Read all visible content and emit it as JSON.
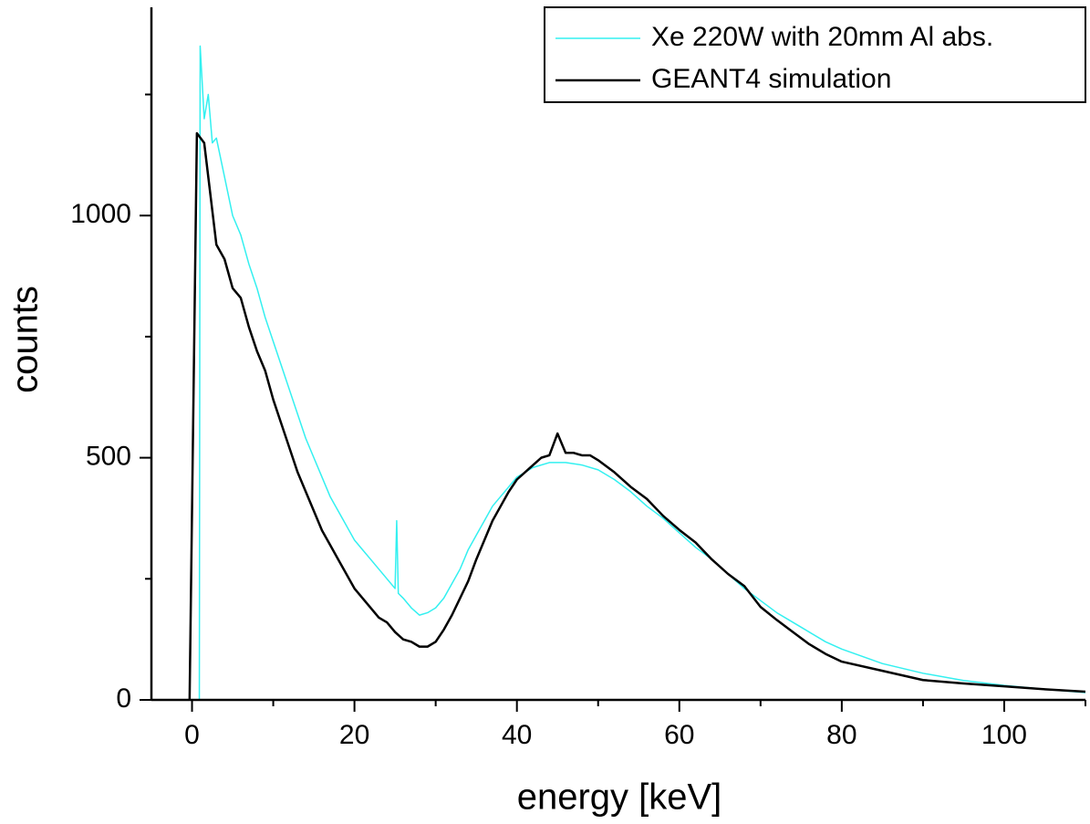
{
  "chart_data": {
    "type": "line",
    "xlabel": "energy [keV]",
    "ylabel": "counts",
    "xlim": [
      -5,
      110
    ],
    "ylim": [
      0,
      1430
    ],
    "xticks": [
      0,
      20,
      40,
      60,
      80,
      100
    ],
    "yticks": [
      0,
      500,
      1000
    ],
    "xminorticks": [
      10,
      30,
      50,
      70,
      90,
      110
    ],
    "yminorticks": [
      250,
      750,
      1250
    ],
    "legend": "upper right",
    "series": [
      {
        "name": "Xe 220W with 20mm Al abs.",
        "color": "#33f0f0",
        "x": [
          0.9,
          1,
          1.5,
          2,
          2.5,
          3,
          4,
          5,
          6,
          7,
          8,
          9,
          10,
          11,
          12,
          13,
          14,
          15,
          16,
          17,
          18,
          19,
          20,
          21,
          22,
          23,
          24,
          25,
          25.2,
          25.4,
          26,
          27,
          28,
          29,
          30,
          31,
          32,
          33,
          34,
          35,
          36,
          37,
          38,
          39,
          40,
          42,
          44,
          46,
          48,
          50,
          52,
          54,
          56,
          58,
          60,
          62,
          64,
          66,
          68,
          70,
          72,
          74,
          76,
          78,
          80,
          85,
          90,
          95,
          100,
          105,
          110
        ],
        "values": [
          0,
          1350,
          1200,
          1250,
          1150,
          1160,
          1080,
          1000,
          960,
          900,
          850,
          790,
          740,
          690,
          640,
          590,
          540,
          500,
          460,
          420,
          390,
          360,
          330,
          310,
          290,
          270,
          250,
          230,
          370,
          220,
          210,
          190,
          175,
          180,
          190,
          210,
          240,
          270,
          310,
          340,
          370,
          400,
          420,
          440,
          460,
          480,
          490,
          490,
          485,
          475,
          455,
          430,
          400,
          375,
          345,
          315,
          290,
          260,
          230,
          205,
          180,
          160,
          140,
          120,
          105,
          75,
          55,
          40,
          30,
          22,
          15
        ]
      },
      {
        "name": "GEANT4 simulation",
        "color": "#000000",
        "x": [
          -0.3,
          0.6,
          1.5,
          2.5,
          3,
          4,
          5,
          6,
          7,
          8,
          9,
          10,
          11,
          12,
          13,
          14,
          15,
          16,
          17,
          18,
          19,
          20,
          21,
          22,
          23,
          24,
          25,
          26,
          27,
          28,
          29,
          30,
          31,
          32,
          33,
          34,
          35,
          36,
          37,
          38,
          39,
          40,
          41,
          42,
          43,
          44,
          45,
          46,
          47,
          48,
          49,
          50,
          52,
          54,
          56,
          58,
          60,
          62,
          64,
          66,
          68,
          70,
          72,
          74,
          76,
          78,
          80,
          85,
          90,
          95,
          100,
          105,
          110
        ],
        "values": [
          0,
          1170,
          1150,
          1010,
          940,
          910,
          850,
          830,
          770,
          720,
          680,
          620,
          570,
          520,
          470,
          430,
          390,
          350,
          320,
          290,
          260,
          230,
          210,
          190,
          170,
          160,
          140,
          125,
          120,
          110,
          110,
          120,
          145,
          175,
          210,
          245,
          290,
          330,
          370,
          400,
          430,
          455,
          470,
          485,
          500,
          505,
          550,
          510,
          510,
          505,
          505,
          495,
          470,
          440,
          415,
          380,
          351,
          325,
          290,
          260,
          235,
          192,
          165,
          140,
          115,
          95,
          79,
          60,
          41,
          34,
          28,
          22,
          17
        ]
      }
    ]
  }
}
